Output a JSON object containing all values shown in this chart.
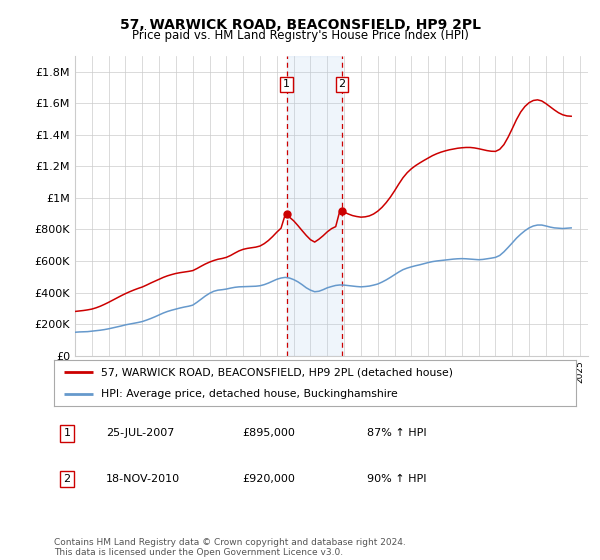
{
  "title": "57, WARWICK ROAD, BEACONSFIELD, HP9 2PL",
  "subtitle": "Price paid vs. HM Land Registry's House Price Index (HPI)",
  "ylim": [
    0,
    1900000
  ],
  "yticks": [
    0,
    200000,
    400000,
    600000,
    800000,
    1000000,
    1200000,
    1400000,
    1600000,
    1800000
  ],
  "ytick_labels": [
    "£0",
    "£200K",
    "£400K",
    "£600K",
    "£800K",
    "£1M",
    "£1.2M",
    "£1.4M",
    "£1.6M",
    "£1.8M"
  ],
  "background_color": "#ffffff",
  "grid_color": "#cccccc",
  "sale1_date": 2007.58,
  "sale1_price": 895000,
  "sale1_label": "1",
  "sale2_date": 2010.88,
  "sale2_price": 920000,
  "sale2_label": "2",
  "hpi_line_color": "#6699cc",
  "price_line_color": "#cc0000",
  "legend_label_price": "57, WARWICK ROAD, BEACONSFIELD, HP9 2PL (detached house)",
  "legend_label_hpi": "HPI: Average price, detached house, Buckinghamshire",
  "note1_label": "1",
  "note1_date": "25-JUL-2007",
  "note1_price": "£895,000",
  "note1_hpi": "87% ↑ HPI",
  "note2_label": "2",
  "note2_date": "18-NOV-2010",
  "note2_price": "£920,000",
  "note2_hpi": "90% ↑ HPI",
  "footer": "Contains HM Land Registry data © Crown copyright and database right 2024.\nThis data is licensed under the Open Government Licence v3.0.",
  "hpi_data": [
    [
      1995.0,
      148000
    ],
    [
      1995.25,
      150000
    ],
    [
      1995.5,
      151000
    ],
    [
      1995.75,
      152000
    ],
    [
      1996.0,
      155000
    ],
    [
      1996.25,
      158000
    ],
    [
      1996.5,
      161000
    ],
    [
      1996.75,
      165000
    ],
    [
      1997.0,
      170000
    ],
    [
      1997.25,
      176000
    ],
    [
      1997.5,
      182000
    ],
    [
      1997.75,
      188000
    ],
    [
      1998.0,
      195000
    ],
    [
      1998.25,
      200000
    ],
    [
      1998.5,
      205000
    ],
    [
      1998.75,
      210000
    ],
    [
      1999.0,
      216000
    ],
    [
      1999.25,
      225000
    ],
    [
      1999.5,
      235000
    ],
    [
      1999.75,
      246000
    ],
    [
      2000.0,
      258000
    ],
    [
      2000.25,
      270000
    ],
    [
      2000.5,
      280000
    ],
    [
      2000.75,
      288000
    ],
    [
      2001.0,
      295000
    ],
    [
      2001.25,
      302000
    ],
    [
      2001.5,
      308000
    ],
    [
      2001.75,
      313000
    ],
    [
      2002.0,
      320000
    ],
    [
      2002.25,
      338000
    ],
    [
      2002.5,
      358000
    ],
    [
      2002.75,
      378000
    ],
    [
      2003.0,
      395000
    ],
    [
      2003.25,
      408000
    ],
    [
      2003.5,
      415000
    ],
    [
      2003.75,
      418000
    ],
    [
      2004.0,
      422000
    ],
    [
      2004.25,
      428000
    ],
    [
      2004.5,
      433000
    ],
    [
      2004.75,
      436000
    ],
    [
      2005.0,
      437000
    ],
    [
      2005.25,
      438000
    ],
    [
      2005.5,
      439000
    ],
    [
      2005.75,
      440000
    ],
    [
      2006.0,
      443000
    ],
    [
      2006.25,
      450000
    ],
    [
      2006.5,
      460000
    ],
    [
      2006.75,
      472000
    ],
    [
      2007.0,
      484000
    ],
    [
      2007.25,
      492000
    ],
    [
      2007.5,
      496000
    ],
    [
      2007.75,
      492000
    ],
    [
      2008.0,
      482000
    ],
    [
      2008.25,
      468000
    ],
    [
      2008.5,
      450000
    ],
    [
      2008.75,
      430000
    ],
    [
      2009.0,
      415000
    ],
    [
      2009.25,
      405000
    ],
    [
      2009.5,
      408000
    ],
    [
      2009.75,
      418000
    ],
    [
      2010.0,
      430000
    ],
    [
      2010.25,
      438000
    ],
    [
      2010.5,
      445000
    ],
    [
      2010.75,
      448000
    ],
    [
      2011.0,
      447000
    ],
    [
      2011.25,
      444000
    ],
    [
      2011.5,
      441000
    ],
    [
      2011.75,
      438000
    ],
    [
      2012.0,
      436000
    ],
    [
      2012.25,
      438000
    ],
    [
      2012.5,
      441000
    ],
    [
      2012.75,
      447000
    ],
    [
      2013.0,
      454000
    ],
    [
      2013.25,
      466000
    ],
    [
      2013.5,
      480000
    ],
    [
      2013.75,
      496000
    ],
    [
      2014.0,
      513000
    ],
    [
      2014.25,
      530000
    ],
    [
      2014.5,
      545000
    ],
    [
      2014.75,
      555000
    ],
    [
      2015.0,
      563000
    ],
    [
      2015.25,
      570000
    ],
    [
      2015.5,
      576000
    ],
    [
      2015.75,
      583000
    ],
    [
      2016.0,
      590000
    ],
    [
      2016.25,
      596000
    ],
    [
      2016.5,
      600000
    ],
    [
      2016.75,
      603000
    ],
    [
      2017.0,
      606000
    ],
    [
      2017.25,
      609000
    ],
    [
      2017.5,
      612000
    ],
    [
      2017.75,
      614000
    ],
    [
      2018.0,
      615000
    ],
    [
      2018.25,
      614000
    ],
    [
      2018.5,
      612000
    ],
    [
      2018.75,
      610000
    ],
    [
      2019.0,
      608000
    ],
    [
      2019.25,
      610000
    ],
    [
      2019.5,
      614000
    ],
    [
      2019.75,
      618000
    ],
    [
      2020.0,
      623000
    ],
    [
      2020.25,
      635000
    ],
    [
      2020.5,
      658000
    ],
    [
      2020.75,
      686000
    ],
    [
      2021.0,
      715000
    ],
    [
      2021.25,
      745000
    ],
    [
      2021.5,
      770000
    ],
    [
      2021.75,
      792000
    ],
    [
      2022.0,
      810000
    ],
    [
      2022.25,
      822000
    ],
    [
      2022.5,
      828000
    ],
    [
      2022.75,
      828000
    ],
    [
      2023.0,
      822000
    ],
    [
      2023.25,
      815000
    ],
    [
      2023.5,
      810000
    ],
    [
      2023.75,
      808000
    ],
    [
      2024.0,
      806000
    ],
    [
      2024.25,
      808000
    ],
    [
      2024.5,
      810000
    ]
  ],
  "price_data": [
    [
      1995.0,
      280000
    ],
    [
      1995.25,
      283000
    ],
    [
      1995.5,
      286000
    ],
    [
      1995.75,
      290000
    ],
    [
      1996.0,
      295000
    ],
    [
      1996.25,
      303000
    ],
    [
      1996.5,
      313000
    ],
    [
      1996.75,
      325000
    ],
    [
      1997.0,
      338000
    ],
    [
      1997.25,
      352000
    ],
    [
      1997.5,
      366000
    ],
    [
      1997.75,
      380000
    ],
    [
      1998.0,
      393000
    ],
    [
      1998.25,
      405000
    ],
    [
      1998.5,
      416000
    ],
    [
      1998.75,
      426000
    ],
    [
      1999.0,
      435000
    ],
    [
      1999.25,
      447000
    ],
    [
      1999.5,
      460000
    ],
    [
      1999.75,
      472000
    ],
    [
      2000.0,
      484000
    ],
    [
      2000.25,
      496000
    ],
    [
      2000.5,
      506000
    ],
    [
      2000.75,
      514000
    ],
    [
      2001.0,
      521000
    ],
    [
      2001.25,
      526000
    ],
    [
      2001.5,
      530000
    ],
    [
      2001.75,
      534000
    ],
    [
      2002.0,
      539000
    ],
    [
      2002.25,
      552000
    ],
    [
      2002.5,
      567000
    ],
    [
      2002.75,
      581000
    ],
    [
      2003.0,
      593000
    ],
    [
      2003.25,
      603000
    ],
    [
      2003.5,
      611000
    ],
    [
      2003.75,
      616000
    ],
    [
      2004.0,
      623000
    ],
    [
      2004.25,
      635000
    ],
    [
      2004.5,
      650000
    ],
    [
      2004.75,
      664000
    ],
    [
      2005.0,
      674000
    ],
    [
      2005.25,
      680000
    ],
    [
      2005.5,
      684000
    ],
    [
      2005.75,
      688000
    ],
    [
      2006.0,
      695000
    ],
    [
      2006.25,
      710000
    ],
    [
      2006.5,
      730000
    ],
    [
      2006.75,
      755000
    ],
    [
      2007.0,
      783000
    ],
    [
      2007.25,
      808000
    ],
    [
      2007.5,
      895000
    ],
    [
      2007.75,
      878000
    ],
    [
      2008.0,
      855000
    ],
    [
      2008.25,
      825000
    ],
    [
      2008.5,
      793000
    ],
    [
      2008.75,
      762000
    ],
    [
      2009.0,
      735000
    ],
    [
      2009.25,
      720000
    ],
    [
      2009.5,
      738000
    ],
    [
      2009.75,
      760000
    ],
    [
      2010.0,
      785000
    ],
    [
      2010.25,
      805000
    ],
    [
      2010.5,
      818000
    ],
    [
      2010.75,
      920000
    ],
    [
      2011.0,
      910000
    ],
    [
      2011.25,
      898000
    ],
    [
      2011.5,
      888000
    ],
    [
      2011.75,
      882000
    ],
    [
      2012.0,
      878000
    ],
    [
      2012.25,
      880000
    ],
    [
      2012.5,
      886000
    ],
    [
      2012.75,
      898000
    ],
    [
      2013.0,
      916000
    ],
    [
      2013.25,
      940000
    ],
    [
      2013.5,
      970000
    ],
    [
      2013.75,
      1005000
    ],
    [
      2014.0,
      1045000
    ],
    [
      2014.25,
      1088000
    ],
    [
      2014.5,
      1128000
    ],
    [
      2014.75,
      1160000
    ],
    [
      2015.0,
      1185000
    ],
    [
      2015.25,
      1205000
    ],
    [
      2015.5,
      1222000
    ],
    [
      2015.75,
      1238000
    ],
    [
      2016.0,
      1253000
    ],
    [
      2016.25,
      1268000
    ],
    [
      2016.5,
      1280000
    ],
    [
      2016.75,
      1290000
    ],
    [
      2017.0,
      1298000
    ],
    [
      2017.25,
      1305000
    ],
    [
      2017.5,
      1310000
    ],
    [
      2017.75,
      1315000
    ],
    [
      2018.0,
      1318000
    ],
    [
      2018.25,
      1320000
    ],
    [
      2018.5,
      1320000
    ],
    [
      2018.75,
      1317000
    ],
    [
      2019.0,
      1312000
    ],
    [
      2019.25,
      1306000
    ],
    [
      2019.5,
      1300000
    ],
    [
      2019.75,
      1296000
    ],
    [
      2020.0,
      1295000
    ],
    [
      2020.25,
      1308000
    ],
    [
      2020.5,
      1338000
    ],
    [
      2020.75,
      1385000
    ],
    [
      2021.0,
      1440000
    ],
    [
      2021.25,
      1497000
    ],
    [
      2021.5,
      1545000
    ],
    [
      2021.75,
      1580000
    ],
    [
      2022.0,
      1604000
    ],
    [
      2022.25,
      1618000
    ],
    [
      2022.5,
      1622000
    ],
    [
      2022.75,
      1615000
    ],
    [
      2023.0,
      1598000
    ],
    [
      2023.25,
      1578000
    ],
    [
      2023.5,
      1558000
    ],
    [
      2023.75,
      1540000
    ],
    [
      2024.0,
      1527000
    ],
    [
      2024.25,
      1520000
    ],
    [
      2024.5,
      1518000
    ]
  ]
}
